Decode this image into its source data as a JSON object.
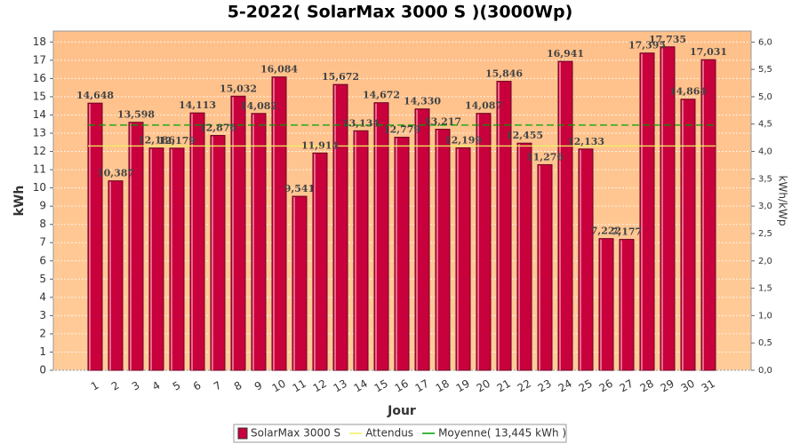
{
  "chart_data": {
    "type": "bar",
    "title": "5-2022( SolarMax 3000 S )(3000Wp)",
    "xlabel": "Jour",
    "ylabel": "kWh",
    "y2label": "kWh/kWp",
    "categories": [
      "1",
      "2",
      "3",
      "4",
      "5",
      "6",
      "7",
      "8",
      "9",
      "10",
      "11",
      "12",
      "13",
      "14",
      "15",
      "16",
      "17",
      "18",
      "19",
      "20",
      "21",
      "22",
      "23",
      "24",
      "25",
      "26",
      "27",
      "28",
      "29",
      "30",
      "31"
    ],
    "series": [
      {
        "name": "SolarMax 3000 S",
        "color": "#c8003c",
        "values": [
          14.648,
          10.387,
          13.598,
          12.186,
          12.179,
          14.113,
          12.876,
          15.032,
          14.082,
          16.084,
          9.541,
          11.914,
          15.672,
          13.134,
          14.672,
          12.779,
          14.33,
          13.217,
          12.199,
          14.087,
          15.846,
          12.455,
          11.276,
          16.941,
          12.133,
          7.222,
          7.177,
          17.395,
          17.735,
          14.864,
          17.031
        ],
        "value_labels": [
          "14,648",
          "10,387",
          "13,598",
          "12,186",
          "12,179",
          "14,113",
          "12,876",
          "15,032",
          "14,082",
          "16,084",
          "9,541",
          "11,914",
          "15,672",
          "13,134",
          "14,672",
          "12,779",
          "14,330",
          "13,217",
          "12,199",
          "14,087",
          "15,846",
          "12,455",
          "11,276",
          "16,941",
          "12,133",
          "7,222",
          "7,177",
          "17,395",
          "17,735",
          "14,864",
          "17,031"
        ]
      }
    ],
    "reference_lines": [
      {
        "name": "Attendus",
        "value": 12.3,
        "color": "#f0f060",
        "dashed": false
      },
      {
        "name": "Moyenne( 13,445 kWh )",
        "value": 13.445,
        "color": "#00a000",
        "dashed": true
      }
    ],
    "ylim": [
      0,
      18.6
    ],
    "yticks": [
      0,
      1,
      2,
      3,
      4,
      5,
      6,
      7,
      8,
      9,
      10,
      11,
      12,
      13,
      14,
      15,
      16,
      17,
      18
    ],
    "y2lim": [
      0,
      6.2
    ],
    "y2ticks": [
      {
        "value": 0,
        "label": "0,0"
      },
      {
        "value": 0.5,
        "label": "0,5"
      },
      {
        "value": 1,
        "label": "1,0"
      },
      {
        "value": 1.5,
        "label": "1,5"
      },
      {
        "value": 2,
        "label": "2,0"
      },
      {
        "value": 2.5,
        "label": "2,5"
      },
      {
        "value": 3,
        "label": "3,0"
      },
      {
        "value": 3.5,
        "label": "3,5"
      },
      {
        "value": 4,
        "label": "4,0"
      },
      {
        "value": 4.5,
        "label": "4,5"
      },
      {
        "value": 5,
        "label": "5,0"
      },
      {
        "value": 5.5,
        "label": "5,5"
      },
      {
        "value": 6,
        "label": "6,0"
      }
    ],
    "grid": true
  }
}
